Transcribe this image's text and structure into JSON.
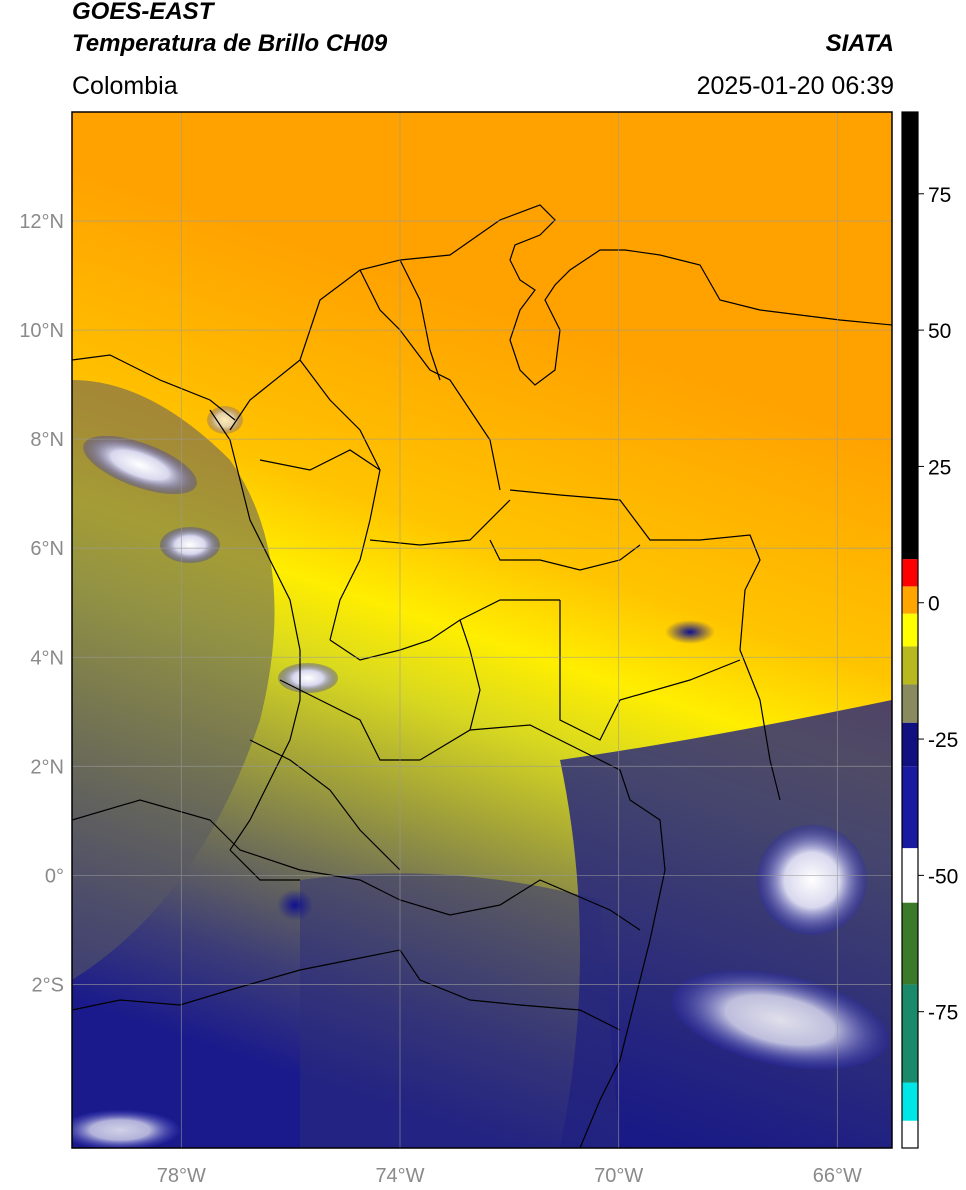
{
  "header": {
    "satellite": "GOES-EAST",
    "product": "Temperatura de Brillo CH09",
    "region": "Colombia",
    "organization": "SIATA",
    "timestamp": "2025-01-20 06:39"
  },
  "map": {
    "lon_range": [
      -80,
      -65
    ],
    "lat_range": [
      -5,
      14
    ],
    "lat_ticks": [
      {
        "value": 12,
        "label": "12°N"
      },
      {
        "value": 10,
        "label": "10°N"
      },
      {
        "value": 8,
        "label": "8°N"
      },
      {
        "value": 6,
        "label": "6°N"
      },
      {
        "value": 4,
        "label": "4°N"
      },
      {
        "value": 2,
        "label": "2°N"
      },
      {
        "value": 0,
        "label": "0°"
      },
      {
        "value": -2,
        "label": "2°S"
      }
    ],
    "lon_ticks": [
      {
        "value": -78,
        "label": "78°W"
      },
      {
        "value": -74,
        "label": "74°W"
      },
      {
        "value": -70,
        "label": "70°W"
      },
      {
        "value": -66,
        "label": "66°W"
      }
    ],
    "gridlines": true
  },
  "colorbar": {
    "range": [
      -100,
      90
    ],
    "ticks": [
      {
        "value": 75,
        "label": "75"
      },
      {
        "value": 50,
        "label": "50"
      },
      {
        "value": 25,
        "label": "25"
      },
      {
        "value": 0,
        "label": "0"
      },
      {
        "value": -25,
        "label": "-25"
      },
      {
        "value": -50,
        "label": "-50"
      },
      {
        "value": -75,
        "label": "-75"
      }
    ],
    "colors": [
      "#ffffff",
      "#00e5e5",
      "#1a8a6a",
      "#3a7a2a",
      "#ffffff",
      "#1a1aa0",
      "#101080",
      "#8a8a60",
      "#b8b820",
      "#ffff00",
      "#ffa500",
      "#ff0000",
      "#000000"
    ]
  }
}
